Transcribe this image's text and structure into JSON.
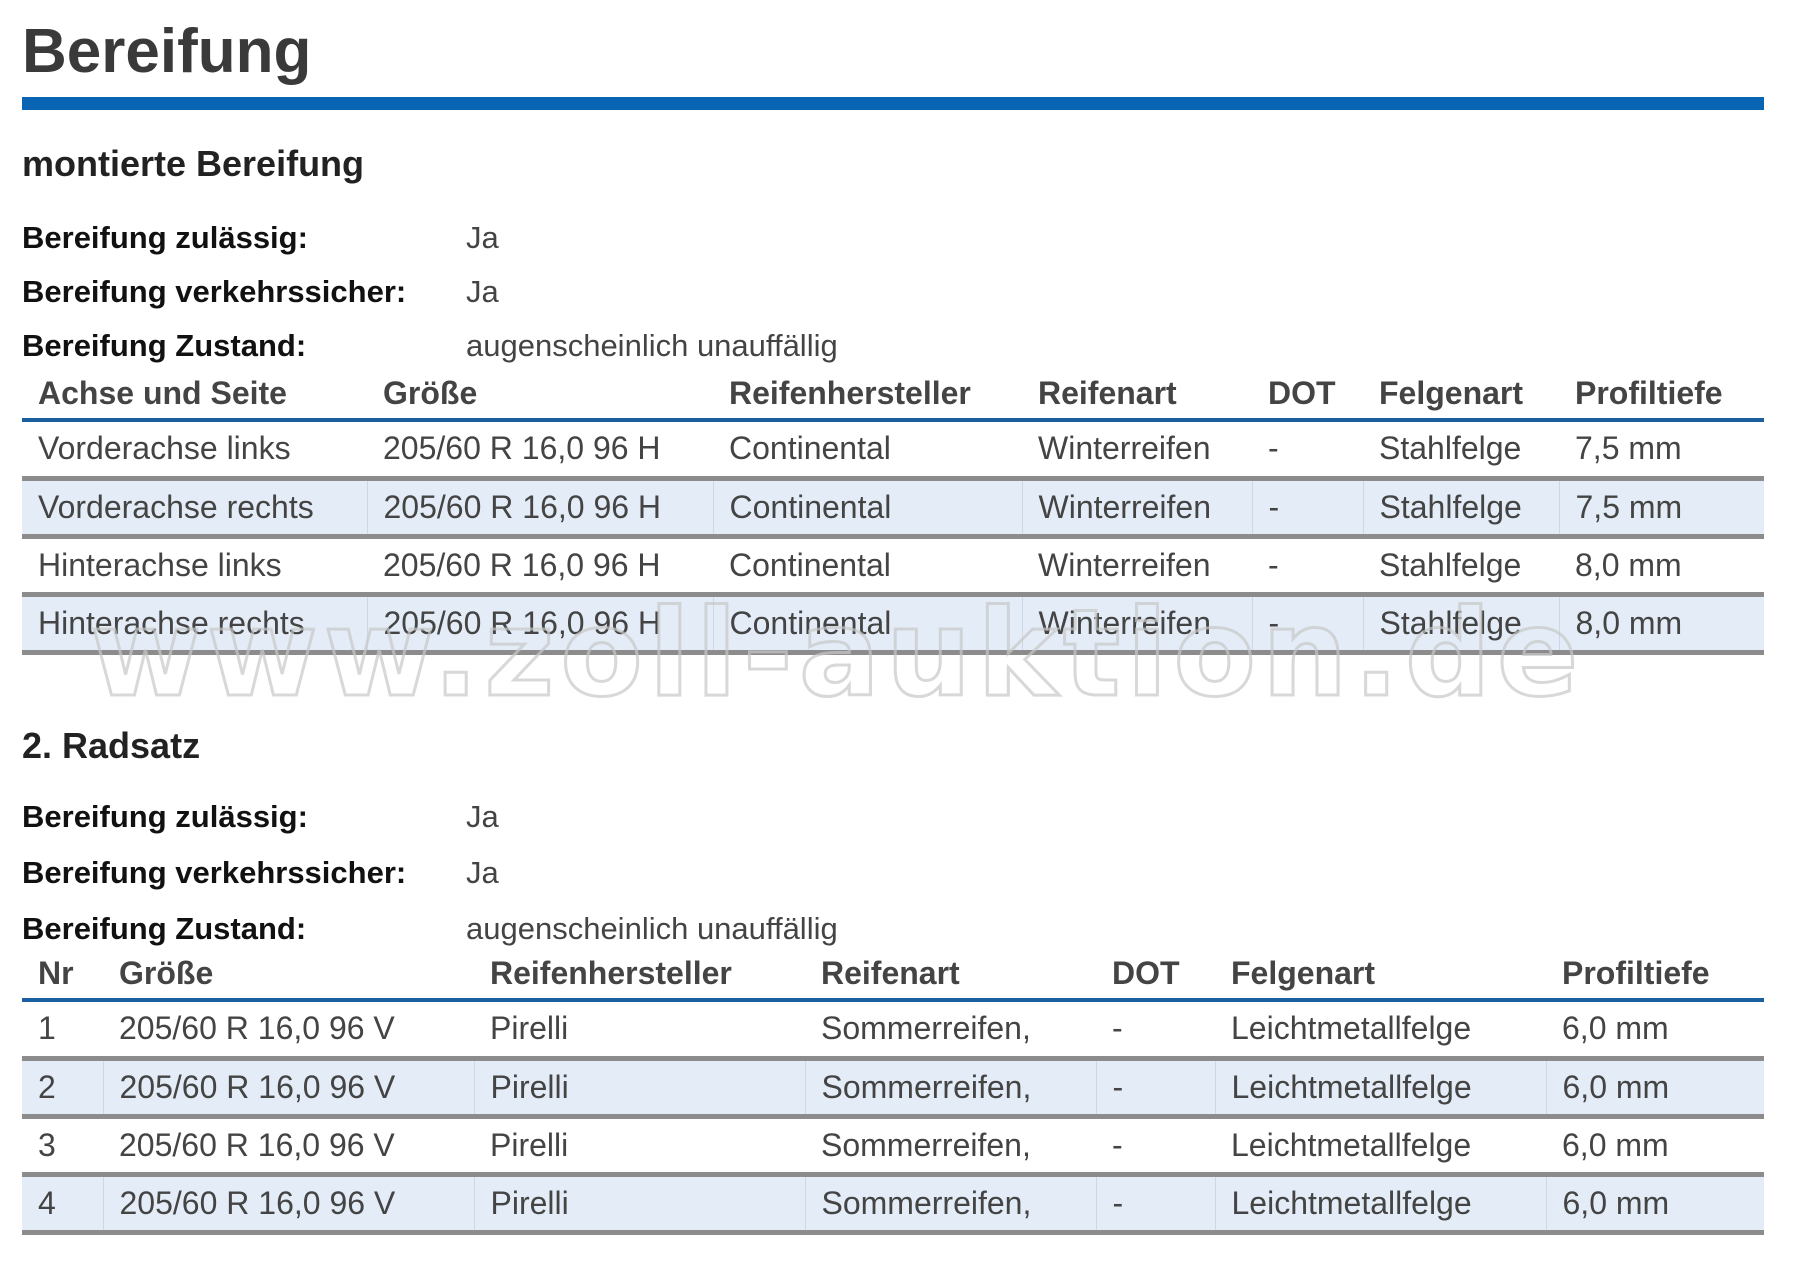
{
  "title": "Bereifung",
  "colors": {
    "accent": "#0a64b4",
    "row_alt": "#e4edf7",
    "row_border": "#8c8c8c"
  },
  "watermark": "www.zoll-auktion.de",
  "mounted": {
    "heading": "montierte Bereifung",
    "info": [
      {
        "label": "Bereifung zulässig:",
        "value": "Ja"
      },
      {
        "label": "Bereifung verkehrssicher:",
        "value": "Ja"
      },
      {
        "label": "Bereifung Zustand:",
        "value": "augenscheinlich unauffällig"
      }
    ],
    "columns": [
      "Achse und Seite",
      "Größe",
      "Reifenhersteller",
      "Reifenart",
      "DOT",
      "Felgenart",
      "Profiltiefe"
    ],
    "rows": [
      [
        "Vorderachse links",
        "205/60 R 16,0 96 H",
        "Continental",
        "Winterreifen",
        "-",
        "Stahlfelge",
        "7,5 mm"
      ],
      [
        "Vorderachse rechts",
        "205/60 R 16,0 96 H",
        "Continental",
        "Winterreifen",
        "-",
        "Stahlfelge",
        "7,5 mm"
      ],
      [
        "Hinterachse links",
        "205/60 R 16,0 96 H",
        "Continental",
        "Winterreifen",
        "-",
        "Stahlfelge",
        "8,0 mm"
      ],
      [
        "Hinterachse rechts",
        "205/60 R 16,0 96 H",
        "Continental",
        "Winterreifen",
        "-",
        "Stahlfelge",
        "8,0 mm"
      ]
    ]
  },
  "second": {
    "heading": "2. Radsatz",
    "info": [
      {
        "label": "Bereifung zulässig:",
        "value": "Ja"
      },
      {
        "label": "Bereifung verkehrssicher:",
        "value": "Ja"
      },
      {
        "label": "Bereifung Zustand:",
        "value": "augenscheinlich unauffällig"
      }
    ],
    "columns": [
      "Nr",
      "Größe",
      "Reifenhersteller",
      "Reifenart",
      "DOT",
      "Felgenart",
      "Profiltiefe"
    ],
    "rows": [
      [
        "1",
        "205/60 R 16,0 96 V",
        "Pirelli",
        "Sommerreifen,",
        "-",
        "Leichtmetallfelge",
        "6,0 mm"
      ],
      [
        "2",
        "205/60 R 16,0 96 V",
        "Pirelli",
        "Sommerreifen,",
        "-",
        "Leichtmetallfelge",
        "6,0 mm"
      ],
      [
        "3",
        "205/60 R 16,0 96 V",
        "Pirelli",
        "Sommerreifen,",
        "-",
        "Leichtmetallfelge",
        "6,0 mm"
      ],
      [
        "4",
        "205/60 R 16,0 96 V",
        "Pirelli",
        "Sommerreifen,",
        "-",
        "Leichtmetallfelge",
        "6,0 mm"
      ]
    ]
  }
}
